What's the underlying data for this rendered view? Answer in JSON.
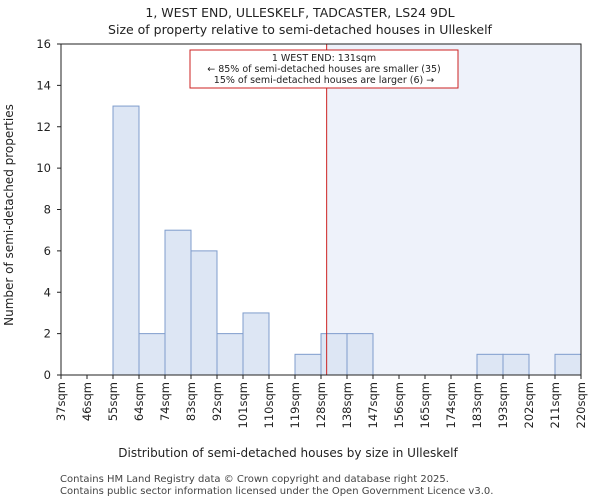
{
  "chart_data": {
    "type": "bar",
    "title": "1, WEST END, ULLESKELF, TADCASTER, LS24 9DL",
    "subtitle": "Size of property relative to semi-detached houses in Ulleskelf",
    "xlabel": "Distribution of semi-detached houses by size in Ulleskelf",
    "ylabel": "Number of semi-detached properties",
    "categories": [
      "37sqm",
      "46sqm",
      "55sqm",
      "64sqm",
      "74sqm",
      "83sqm",
      "92sqm",
      "101sqm",
      "110sqm",
      "119sqm",
      "128sqm",
      "138sqm",
      "147sqm",
      "156sqm",
      "165sqm",
      "174sqm",
      "183sqm",
      "193sqm",
      "202sqm",
      "211sqm",
      "220sqm"
    ],
    "values": [
      0,
      0,
      13,
      2,
      7,
      6,
      2,
      3,
      0,
      1,
      2,
      2,
      0,
      0,
      0,
      0,
      1,
      1,
      0,
      1,
      0
    ],
    "ylim": [
      0,
      16
    ],
    "yticks": [
      0,
      2,
      4,
      6,
      8,
      10,
      12,
      14,
      16
    ],
    "bar_color": "#dde6f4",
    "bar_edge_color": "#7f9ccc",
    "highlight_color": "#eef2fa",
    "marker_color": "#cc2222",
    "marker_value": 131,
    "bin_start": 37,
    "bin_width": 9.2,
    "annotation": {
      "line1": "1 WEST END: 131sqm",
      "line2": "← 85% of semi-detached houses are smaller (35)",
      "line3": "15% of semi-detached houses are larger (6) →"
    }
  },
  "footer": {
    "line1": "Contains HM Land Registry data © Crown copyright and database right 2025.",
    "line2": "Contains public sector information licensed under the Open Government Licence v3.0."
  }
}
